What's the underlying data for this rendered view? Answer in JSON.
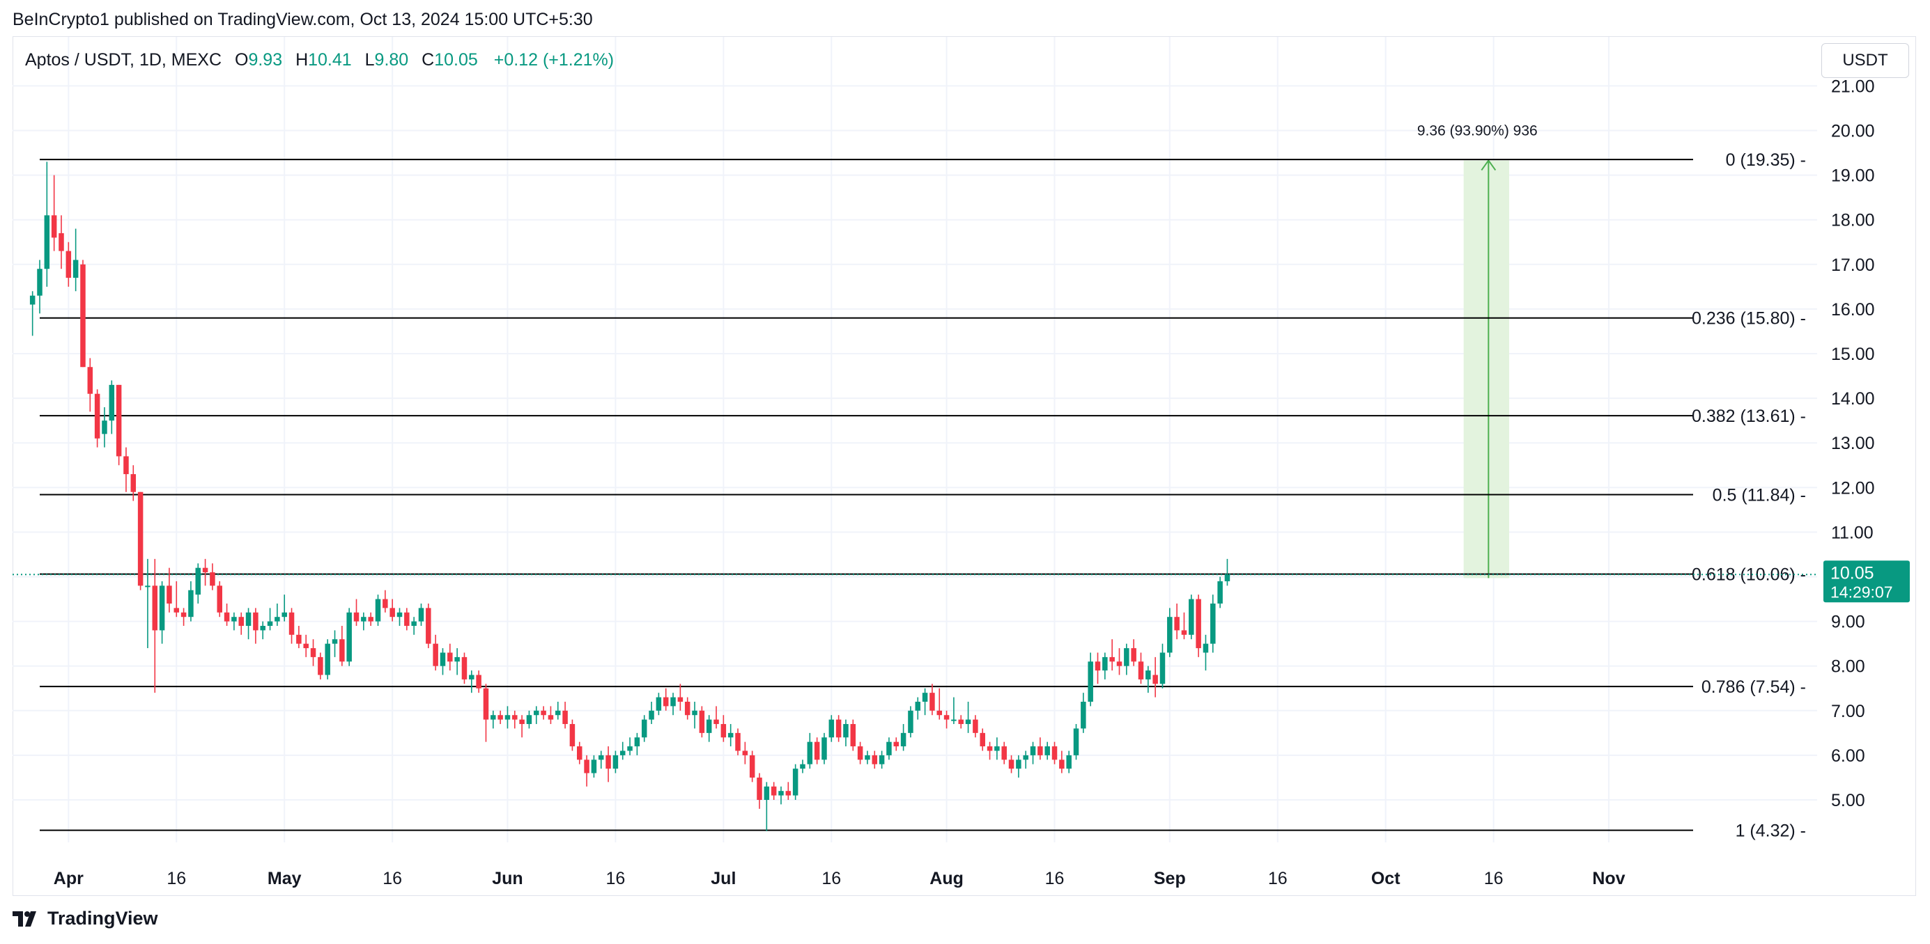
{
  "header": {
    "publish_line": "BeInCrypto1 published on TradingView.com, Oct 13, 2024 15:00 UTC+5:30"
  },
  "legend": {
    "symbol": "Aptos / USDT, 1D, MEXC",
    "o_label": "O",
    "o_value": "9.93",
    "h_label": "H",
    "h_value": "10.41",
    "l_label": "L",
    "l_value": "9.80",
    "c_label": "C",
    "c_value": "10.05",
    "change": "+0.12 (+1.21%)"
  },
  "currency_label": "USDT",
  "footer": {
    "brand": "TradingView"
  },
  "colors": {
    "up": "#089981",
    "down": "#f23645",
    "grid": "#f0f3fa",
    "text": "#131722",
    "measure_fill": "#e3f3de",
    "measure_line": "#4caf50"
  },
  "chart_data": {
    "type": "candlestick",
    "title": "Aptos / USDT, 1D, MEXC",
    "ylim": [
      4.0,
      21.5
    ],
    "y_ticks": [
      "21.00",
      "20.00",
      "19.00",
      "18.00",
      "17.00",
      "16.00",
      "15.00",
      "14.00",
      "13.00",
      "12.00",
      "11.00",
      "9.00",
      "8.00",
      "7.00",
      "6.00",
      "5.00"
    ],
    "x_ticks": [
      {
        "label": "Apr",
        "day": 4,
        "bold": true
      },
      {
        "label": "16",
        "day": 19,
        "bold": false
      },
      {
        "label": "May",
        "day": 34,
        "bold": true
      },
      {
        "label": "16",
        "day": 49,
        "bold": false
      },
      {
        "label": "Jun",
        "day": 65,
        "bold": true
      },
      {
        "label": "16",
        "day": 80,
        "bold": false
      },
      {
        "label": "Jul",
        "day": 95,
        "bold": true
      },
      {
        "label": "16",
        "day": 110,
        "bold": false
      },
      {
        "label": "Aug",
        "day": 126,
        "bold": true
      },
      {
        "label": "16",
        "day": 141,
        "bold": false
      },
      {
        "label": "Sep",
        "day": 157,
        "bold": true
      },
      {
        "label": "16",
        "day": 172,
        "bold": false
      },
      {
        "label": "Oct",
        "day": 187,
        "bold": true
      },
      {
        "label": "16",
        "day": 202,
        "bold": false
      },
      {
        "label": "Nov",
        "day": 218,
        "bold": true
      }
    ],
    "fib_levels": [
      {
        "label": "0 (19.35)",
        "price": 19.35
      },
      {
        "label": "0.236 (15.80)",
        "price": 15.8
      },
      {
        "label": "0.382 (13.61)",
        "price": 13.61
      },
      {
        "label": "0.5 (11.84)",
        "price": 11.84
      },
      {
        "label": "0.618 (10.06)",
        "price": 10.06
      },
      {
        "label": "0.786 (7.54)",
        "price": 7.54
      },
      {
        "label": "1 (4.32)",
        "price": 4.32
      }
    ],
    "measure": {
      "label": "9.36 (93.90%) 936",
      "from_price": 9.97,
      "to_price": 19.33,
      "from_day": 199,
      "to_day": 203
    },
    "last_price": {
      "price": 10.05,
      "value": "10.05",
      "countdown": "14:29:07"
    },
    "candles": [
      [
        -1,
        16.1,
        16.4,
        15.4,
        16.3
      ],
      [
        0,
        16.3,
        17.1,
        15.9,
        16.9
      ],
      [
        1,
        16.9,
        19.3,
        16.5,
        18.1
      ],
      [
        2,
        18.1,
        19.0,
        17.3,
        17.6
      ],
      [
        3,
        17.7,
        18.1,
        16.9,
        17.3
      ],
      [
        4,
        17.3,
        17.5,
        16.5,
        16.7
      ],
      [
        5,
        16.7,
        17.8,
        16.4,
        17.1
      ],
      [
        6,
        17.0,
        17.1,
        14.7,
        14.7
      ],
      [
        7,
        14.7,
        14.9,
        13.7,
        14.1
      ],
      [
        8,
        14.1,
        14.2,
        12.9,
        13.1
      ],
      [
        9,
        13.2,
        13.8,
        12.9,
        13.5
      ],
      [
        10,
        13.5,
        14.4,
        13.2,
        14.3
      ],
      [
        11,
        14.3,
        14.3,
        12.5,
        12.7
      ],
      [
        12,
        12.7,
        12.9,
        11.9,
        12.3
      ],
      [
        13,
        12.3,
        12.5,
        11.7,
        11.9
      ],
      [
        14,
        11.9,
        11.9,
        9.7,
        9.8
      ],
      [
        15,
        9.8,
        10.4,
        8.4,
        9.8
      ],
      [
        16,
        9.8,
        10.4,
        7.4,
        8.8
      ],
      [
        17,
        8.8,
        9.9,
        8.5,
        9.8
      ],
      [
        18,
        9.8,
        10.2,
        9.2,
        9.4
      ],
      [
        19,
        9.3,
        9.9,
        9.1,
        9.2
      ],
      [
        20,
        9.2,
        9.3,
        8.9,
        9.1
      ],
      [
        21,
        9.1,
        9.9,
        9.0,
        9.7
      ],
      [
        22,
        9.6,
        10.3,
        9.4,
        10.2
      ],
      [
        23,
        10.2,
        10.4,
        9.8,
        10.1
      ],
      [
        24,
        10.1,
        10.3,
        9.7,
        9.8
      ],
      [
        25,
        9.8,
        9.9,
        9.1,
        9.2
      ],
      [
        26,
        9.2,
        9.4,
        8.9,
        9.0
      ],
      [
        27,
        9.0,
        9.2,
        8.8,
        9.1
      ],
      [
        28,
        9.1,
        9.2,
        8.7,
        8.9
      ],
      [
        29,
        8.9,
        9.3,
        8.6,
        9.2
      ],
      [
        30,
        9.2,
        9.3,
        8.5,
        8.8
      ],
      [
        31,
        8.8,
        9.0,
        8.6,
        8.9
      ],
      [
        32,
        8.9,
        9.3,
        8.8,
        9.0
      ],
      [
        33,
        9.0,
        9.4,
        8.9,
        9.1
      ],
      [
        34,
        9.1,
        9.6,
        9.0,
        9.2
      ],
      [
        35,
        9.2,
        9.3,
        8.5,
        8.7
      ],
      [
        36,
        8.7,
        8.9,
        8.4,
        8.5
      ],
      [
        37,
        8.5,
        8.7,
        8.2,
        8.4
      ],
      [
        38,
        8.4,
        8.6,
        8.0,
        8.2
      ],
      [
        39,
        8.2,
        8.3,
        7.7,
        7.8
      ],
      [
        40,
        7.8,
        8.6,
        7.7,
        8.5
      ],
      [
        41,
        8.5,
        8.8,
        8.2,
        8.6
      ],
      [
        42,
        8.6,
        8.9,
        8.0,
        8.1
      ],
      [
        43,
        8.1,
        9.3,
        8.0,
        9.2
      ],
      [
        44,
        9.2,
        9.5,
        8.9,
        9.0
      ],
      [
        45,
        9.0,
        9.2,
        8.8,
        9.1
      ],
      [
        46,
        9.1,
        9.2,
        8.9,
        9.0
      ],
      [
        47,
        9.0,
        9.6,
        8.9,
        9.5
      ],
      [
        48,
        9.5,
        9.7,
        9.2,
        9.3
      ],
      [
        49,
        9.3,
        9.5,
        9.0,
        9.1
      ],
      [
        50,
        9.1,
        9.3,
        8.9,
        9.2
      ],
      [
        51,
        9.2,
        9.3,
        8.8,
        8.9
      ],
      [
        52,
        8.9,
        9.1,
        8.7,
        9.0
      ],
      [
        53,
        9.0,
        9.4,
        8.9,
        9.3
      ],
      [
        54,
        9.3,
        9.4,
        8.4,
        8.5
      ],
      [
        55,
        8.5,
        8.7,
        7.9,
        8.0
      ],
      [
        56,
        8.0,
        8.4,
        7.8,
        8.3
      ],
      [
        57,
        8.3,
        8.5,
        7.9,
        8.1
      ],
      [
        58,
        8.1,
        8.4,
        7.8,
        8.2
      ],
      [
        59,
        8.2,
        8.3,
        7.6,
        7.7
      ],
      [
        60,
        7.7,
        7.9,
        7.4,
        7.8
      ],
      [
        61,
        7.8,
        7.9,
        7.4,
        7.5
      ],
      [
        62,
        7.5,
        7.6,
        6.3,
        6.8
      ],
      [
        63,
        6.8,
        7.0,
        6.6,
        6.9
      ],
      [
        64,
        6.9,
        7.0,
        6.7,
        6.8
      ],
      [
        65,
        6.8,
        7.1,
        6.6,
        6.9
      ],
      [
        66,
        6.9,
        7.0,
        6.6,
        6.8
      ],
      [
        67,
        6.8,
        6.9,
        6.4,
        6.7
      ],
      [
        68,
        6.7,
        7.0,
        6.6,
        6.9
      ],
      [
        69,
        6.9,
        7.1,
        6.7,
        7.0
      ],
      [
        70,
        7.0,
        7.1,
        6.8,
        6.9
      ],
      [
        71,
        6.9,
        7.1,
        6.7,
        6.8
      ],
      [
        72,
        6.9,
        7.2,
        6.8,
        7.0
      ],
      [
        73,
        7.0,
        7.2,
        6.6,
        6.7
      ],
      [
        74,
        6.7,
        6.8,
        6.1,
        6.2
      ],
      [
        75,
        6.2,
        6.3,
        5.8,
        5.9
      ],
      [
        76,
        5.9,
        6.0,
        5.3,
        5.6
      ],
      [
        77,
        5.6,
        6.0,
        5.5,
        5.9
      ],
      [
        78,
        5.9,
        6.1,
        5.7,
        6.0
      ],
      [
        79,
        6.0,
        6.2,
        5.4,
        5.7
      ],
      [
        80,
        5.7,
        6.1,
        5.6,
        6.0
      ],
      [
        81,
        6.0,
        6.3,
        5.9,
        6.1
      ],
      [
        82,
        6.1,
        6.4,
        6.0,
        6.2
      ],
      [
        83,
        6.2,
        6.5,
        6.0,
        6.4
      ],
      [
        84,
        6.4,
        6.9,
        6.3,
        6.8
      ],
      [
        85,
        6.8,
        7.2,
        6.7,
        7.0
      ],
      [
        86,
        7.0,
        7.4,
        6.9,
        7.3
      ],
      [
        87,
        7.3,
        7.5,
        7.0,
        7.1
      ],
      [
        88,
        7.1,
        7.4,
        6.9,
        7.3
      ],
      [
        89,
        7.3,
        7.6,
        7.0,
        7.2
      ],
      [
        90,
        7.2,
        7.3,
        6.8,
        6.9
      ],
      [
        91,
        6.9,
        7.2,
        6.6,
        7.0
      ],
      [
        92,
        7.0,
        7.1,
        6.4,
        6.5
      ],
      [
        93,
        6.5,
        6.9,
        6.3,
        6.8
      ],
      [
        94,
        6.8,
        7.1,
        6.6,
        6.7
      ],
      [
        95,
        6.7,
        6.9,
        6.3,
        6.4
      ],
      [
        96,
        6.4,
        6.7,
        6.2,
        6.5
      ],
      [
        97,
        6.5,
        6.6,
        6.0,
        6.1
      ],
      [
        98,
        6.1,
        6.3,
        5.8,
        6.0
      ],
      [
        99,
        6.0,
        6.1,
        5.4,
        5.5
      ],
      [
        100,
        5.5,
        5.6,
        4.8,
        5.0
      ],
      [
        101,
        5.0,
        5.4,
        4.3,
        5.3
      ],
      [
        102,
        5.3,
        5.4,
        5.0,
        5.1
      ],
      [
        103,
        5.1,
        5.3,
        4.9,
        5.2
      ],
      [
        104,
        5.2,
        5.4,
        5.0,
        5.1
      ],
      [
        105,
        5.1,
        5.8,
        5.0,
        5.7
      ],
      [
        106,
        5.7,
        5.9,
        5.6,
        5.8
      ],
      [
        107,
        5.8,
        6.5,
        5.7,
        6.3
      ],
      [
        108,
        6.3,
        6.4,
        5.8,
        5.9
      ],
      [
        109,
        5.9,
        6.5,
        5.8,
        6.4
      ],
      [
        110,
        6.4,
        6.9,
        6.3,
        6.8
      ],
      [
        111,
        6.8,
        6.9,
        6.3,
        6.4
      ],
      [
        112,
        6.4,
        6.8,
        6.2,
        6.7
      ],
      [
        113,
        6.7,
        6.8,
        6.1,
        6.2
      ],
      [
        114,
        6.2,
        6.3,
        5.8,
        5.9
      ],
      [
        115,
        5.9,
        6.1,
        5.8,
        6.0
      ],
      [
        116,
        6.0,
        6.1,
        5.7,
        5.8
      ],
      [
        117,
        5.8,
        6.1,
        5.7,
        6.0
      ],
      [
        118,
        6.0,
        6.4,
        5.9,
        6.3
      ],
      [
        119,
        6.3,
        6.4,
        6.1,
        6.2
      ],
      [
        120,
        6.2,
        6.7,
        6.1,
        6.5
      ],
      [
        121,
        6.5,
        7.1,
        6.4,
        7.0
      ],
      [
        122,
        7.0,
        7.3,
        6.8,
        7.2
      ],
      [
        123,
        7.2,
        7.5,
        6.9,
        7.4
      ],
      [
        124,
        7.4,
        7.6,
        6.9,
        7.0
      ],
      [
        125,
        7.0,
        7.5,
        6.8,
        6.9
      ],
      [
        126,
        6.9,
        7.0,
        6.6,
        6.8
      ],
      [
        127,
        6.8,
        7.3,
        6.7,
        6.8
      ],
      [
        128,
        6.8,
        6.9,
        6.6,
        6.7
      ],
      [
        129,
        6.7,
        7.2,
        6.5,
        6.8
      ],
      [
        130,
        6.8,
        6.9,
        6.4,
        6.5
      ],
      [
        131,
        6.5,
        6.6,
        6.1,
        6.2
      ],
      [
        132,
        6.2,
        6.3,
        5.9,
        6.1
      ],
      [
        133,
        6.1,
        6.4,
        5.9,
        6.2
      ],
      [
        134,
        6.2,
        6.3,
        5.8,
        5.9
      ],
      [
        135,
        5.9,
        6.0,
        5.6,
        5.7
      ],
      [
        136,
        5.7,
        6.0,
        5.5,
        5.9
      ],
      [
        137,
        5.9,
        6.1,
        5.7,
        6.0
      ],
      [
        138,
        6.0,
        6.3,
        5.8,
        6.2
      ],
      [
        139,
        6.2,
        6.4,
        5.9,
        6.0
      ],
      [
        140,
        6.0,
        6.3,
        5.9,
        6.2
      ],
      [
        141,
        6.2,
        6.3,
        5.8,
        5.9
      ],
      [
        142,
        5.9,
        6.1,
        5.6,
        5.7
      ],
      [
        143,
        5.7,
        6.1,
        5.6,
        6.0
      ],
      [
        144,
        6.0,
        6.7,
        5.9,
        6.6
      ],
      [
        145,
        6.6,
        7.4,
        6.5,
        7.2
      ],
      [
        146,
        7.2,
        8.3,
        7.1,
        8.1
      ],
      [
        147,
        8.1,
        8.3,
        7.6,
        7.9
      ],
      [
        148,
        7.9,
        8.3,
        7.7,
        8.2
      ],
      [
        149,
        8.2,
        8.6,
        7.9,
        8.1
      ],
      [
        150,
        8.1,
        8.4,
        7.8,
        8.0
      ],
      [
        151,
        8.0,
        8.5,
        7.8,
        8.4
      ],
      [
        152,
        8.4,
        8.6,
        8.0,
        8.1
      ],
      [
        153,
        8.1,
        8.3,
        7.6,
        7.7
      ],
      [
        154,
        7.7,
        8.0,
        7.4,
        7.9
      ],
      [
        155,
        7.8,
        8.2,
        7.3,
        7.6
      ],
      [
        156,
        7.6,
        8.5,
        7.5,
        8.3
      ],
      [
        157,
        8.3,
        9.3,
        8.2,
        9.1
      ],
      [
        158,
        9.1,
        9.4,
        8.6,
        8.8
      ],
      [
        159,
        8.8,
        9.2,
        8.6,
        8.7
      ],
      [
        160,
        8.7,
        9.6,
        8.6,
        9.5
      ],
      [
        161,
        9.5,
        9.6,
        8.2,
        8.4
      ],
      [
        162,
        8.3,
        8.7,
        7.9,
        8.5
      ],
      [
        163,
        8.5,
        9.6,
        8.3,
        9.4
      ],
      [
        164,
        9.4,
        10.0,
        9.3,
        9.9
      ],
      [
        165,
        9.9,
        10.4,
        9.8,
        10.05
      ]
    ]
  }
}
